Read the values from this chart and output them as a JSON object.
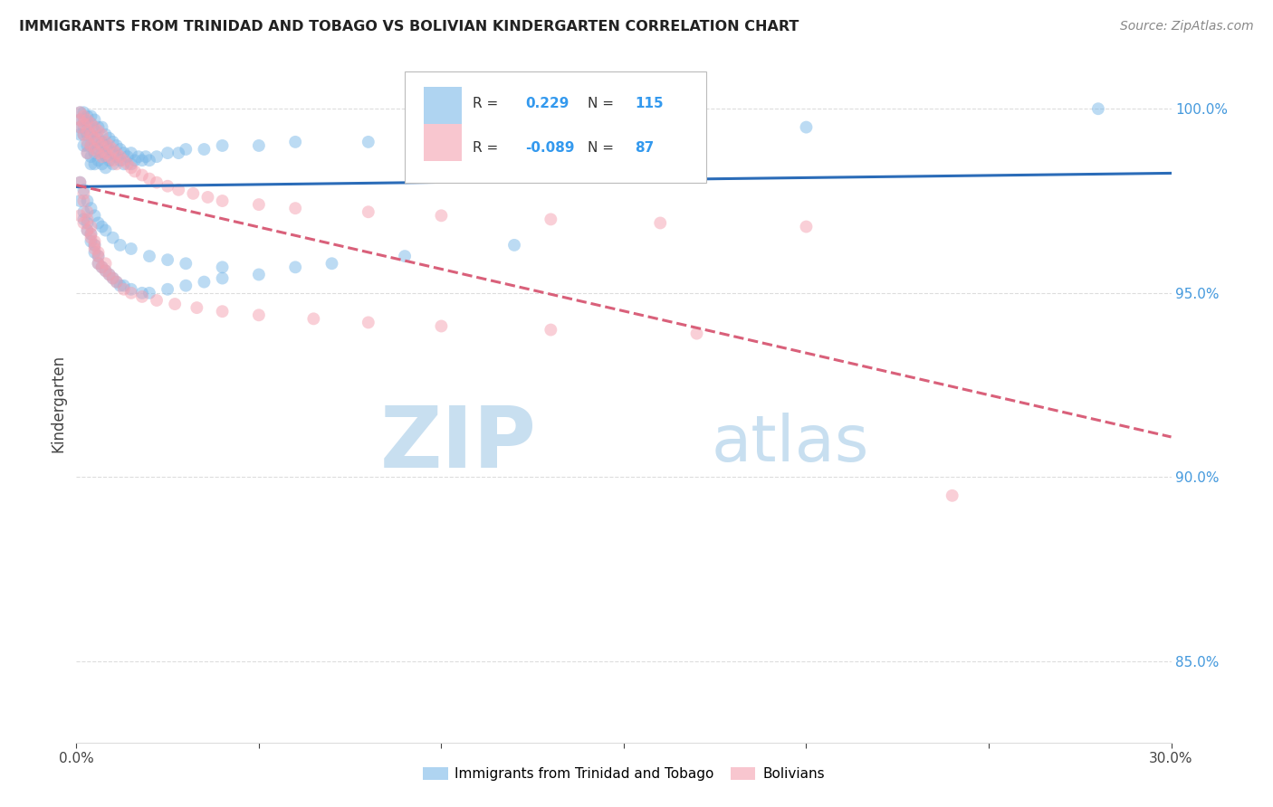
{
  "title": "IMMIGRANTS FROM TRINIDAD AND TOBAGO VS BOLIVIAN KINDERGARTEN CORRELATION CHART",
  "source": "Source: ZipAtlas.com",
  "ylabel": "Kindergarten",
  "yticks": [
    "100.0%",
    "95.0%",
    "90.0%",
    "85.0%"
  ],
  "ytick_vals": [
    1.0,
    0.95,
    0.9,
    0.85
  ],
  "xlim": [
    0.0,
    0.3
  ],
  "ylim": [
    0.828,
    1.012
  ],
  "legend1_label": "Immigrants from Trinidad and Tobago",
  "legend2_label": "Bolivians",
  "R1": 0.229,
  "N1": 115,
  "R2": -0.089,
  "N2": 87,
  "blue_color": "#7ab8e8",
  "pink_color": "#f4a0b0",
  "trendline_blue": "#2b6cb8",
  "trendline_pink": "#d9607a",
  "watermark_zip": "ZIP",
  "watermark_atlas": "atlas",
  "watermark_color": "#c8dff0",
  "blue_x": [
    0.001,
    0.001,
    0.001,
    0.001,
    0.002,
    0.002,
    0.002,
    0.002,
    0.002,
    0.003,
    0.003,
    0.003,
    0.003,
    0.003,
    0.004,
    0.004,
    0.004,
    0.004,
    0.004,
    0.004,
    0.005,
    0.005,
    0.005,
    0.005,
    0.005,
    0.006,
    0.006,
    0.006,
    0.006,
    0.007,
    0.007,
    0.007,
    0.007,
    0.008,
    0.008,
    0.008,
    0.008,
    0.009,
    0.009,
    0.009,
    0.01,
    0.01,
    0.01,
    0.011,
    0.011,
    0.012,
    0.012,
    0.013,
    0.013,
    0.014,
    0.015,
    0.015,
    0.016,
    0.017,
    0.018,
    0.019,
    0.02,
    0.022,
    0.025,
    0.028,
    0.03,
    0.035,
    0.04,
    0.05,
    0.06,
    0.08,
    0.1,
    0.15,
    0.2,
    0.28,
    0.001,
    0.002,
    0.002,
    0.003,
    0.003,
    0.004,
    0.004,
    0.005,
    0.005,
    0.006,
    0.006,
    0.007,
    0.008,
    0.009,
    0.01,
    0.011,
    0.012,
    0.013,
    0.015,
    0.018,
    0.02,
    0.025,
    0.03,
    0.035,
    0.04,
    0.05,
    0.06,
    0.07,
    0.09,
    0.12,
    0.001,
    0.002,
    0.003,
    0.004,
    0.005,
    0.006,
    0.007,
    0.008,
    0.01,
    0.012,
    0.015,
    0.02,
    0.025,
    0.03,
    0.04
  ],
  "blue_y": [
    0.999,
    0.997,
    0.995,
    0.993,
    0.999,
    0.997,
    0.995,
    0.993,
    0.99,
    0.998,
    0.996,
    0.993,
    0.99,
    0.988,
    0.998,
    0.996,
    0.993,
    0.99,
    0.987,
    0.985,
    0.997,
    0.994,
    0.991,
    0.988,
    0.985,
    0.995,
    0.992,
    0.989,
    0.986,
    0.995,
    0.991,
    0.988,
    0.985,
    0.993,
    0.99,
    0.987,
    0.984,
    0.992,
    0.989,
    0.986,
    0.991,
    0.988,
    0.985,
    0.99,
    0.987,
    0.989,
    0.986,
    0.988,
    0.985,
    0.987,
    0.988,
    0.985,
    0.986,
    0.987,
    0.986,
    0.987,
    0.986,
    0.987,
    0.988,
    0.988,
    0.989,
    0.989,
    0.99,
    0.99,
    0.991,
    0.991,
    0.992,
    0.993,
    0.995,
    1.0,
    0.975,
    0.972,
    0.97,
    0.969,
    0.967,
    0.966,
    0.964,
    0.963,
    0.961,
    0.96,
    0.958,
    0.957,
    0.956,
    0.955,
    0.954,
    0.953,
    0.952,
    0.952,
    0.951,
    0.95,
    0.95,
    0.951,
    0.952,
    0.953,
    0.954,
    0.955,
    0.957,
    0.958,
    0.96,
    0.963,
    0.98,
    0.978,
    0.975,
    0.973,
    0.971,
    0.969,
    0.968,
    0.967,
    0.965,
    0.963,
    0.962,
    0.96,
    0.959,
    0.958,
    0.957
  ],
  "pink_x": [
    0.001,
    0.001,
    0.001,
    0.002,
    0.002,
    0.002,
    0.003,
    0.003,
    0.003,
    0.003,
    0.004,
    0.004,
    0.004,
    0.005,
    0.005,
    0.005,
    0.006,
    0.006,
    0.006,
    0.007,
    0.007,
    0.007,
    0.008,
    0.008,
    0.009,
    0.009,
    0.01,
    0.01,
    0.011,
    0.011,
    0.012,
    0.013,
    0.014,
    0.015,
    0.016,
    0.018,
    0.02,
    0.022,
    0.025,
    0.028,
    0.032,
    0.036,
    0.04,
    0.05,
    0.06,
    0.08,
    0.1,
    0.13,
    0.16,
    0.2,
    0.001,
    0.002,
    0.002,
    0.003,
    0.003,
    0.004,
    0.004,
    0.005,
    0.005,
    0.006,
    0.006,
    0.007,
    0.008,
    0.009,
    0.01,
    0.011,
    0.013,
    0.015,
    0.018,
    0.022,
    0.027,
    0.033,
    0.04,
    0.05,
    0.065,
    0.08,
    0.1,
    0.13,
    0.17,
    0.001,
    0.002,
    0.003,
    0.004,
    0.005,
    0.006,
    0.008,
    0.24
  ],
  "pink_y": [
    0.999,
    0.997,
    0.995,
    0.998,
    0.996,
    0.993,
    0.997,
    0.994,
    0.991,
    0.988,
    0.996,
    0.993,
    0.99,
    0.995,
    0.992,
    0.989,
    0.994,
    0.991,
    0.988,
    0.993,
    0.99,
    0.987,
    0.991,
    0.988,
    0.99,
    0.987,
    0.989,
    0.986,
    0.988,
    0.985,
    0.987,
    0.986,
    0.985,
    0.984,
    0.983,
    0.982,
    0.981,
    0.98,
    0.979,
    0.978,
    0.977,
    0.976,
    0.975,
    0.974,
    0.973,
    0.972,
    0.971,
    0.97,
    0.969,
    0.968,
    0.98,
    0.977,
    0.975,
    0.972,
    0.97,
    0.968,
    0.966,
    0.964,
    0.962,
    0.96,
    0.958,
    0.957,
    0.956,
    0.955,
    0.954,
    0.953,
    0.951,
    0.95,
    0.949,
    0.948,
    0.947,
    0.946,
    0.945,
    0.944,
    0.943,
    0.942,
    0.941,
    0.94,
    0.939,
    0.971,
    0.969,
    0.967,
    0.965,
    0.963,
    0.961,
    0.958,
    0.895
  ]
}
